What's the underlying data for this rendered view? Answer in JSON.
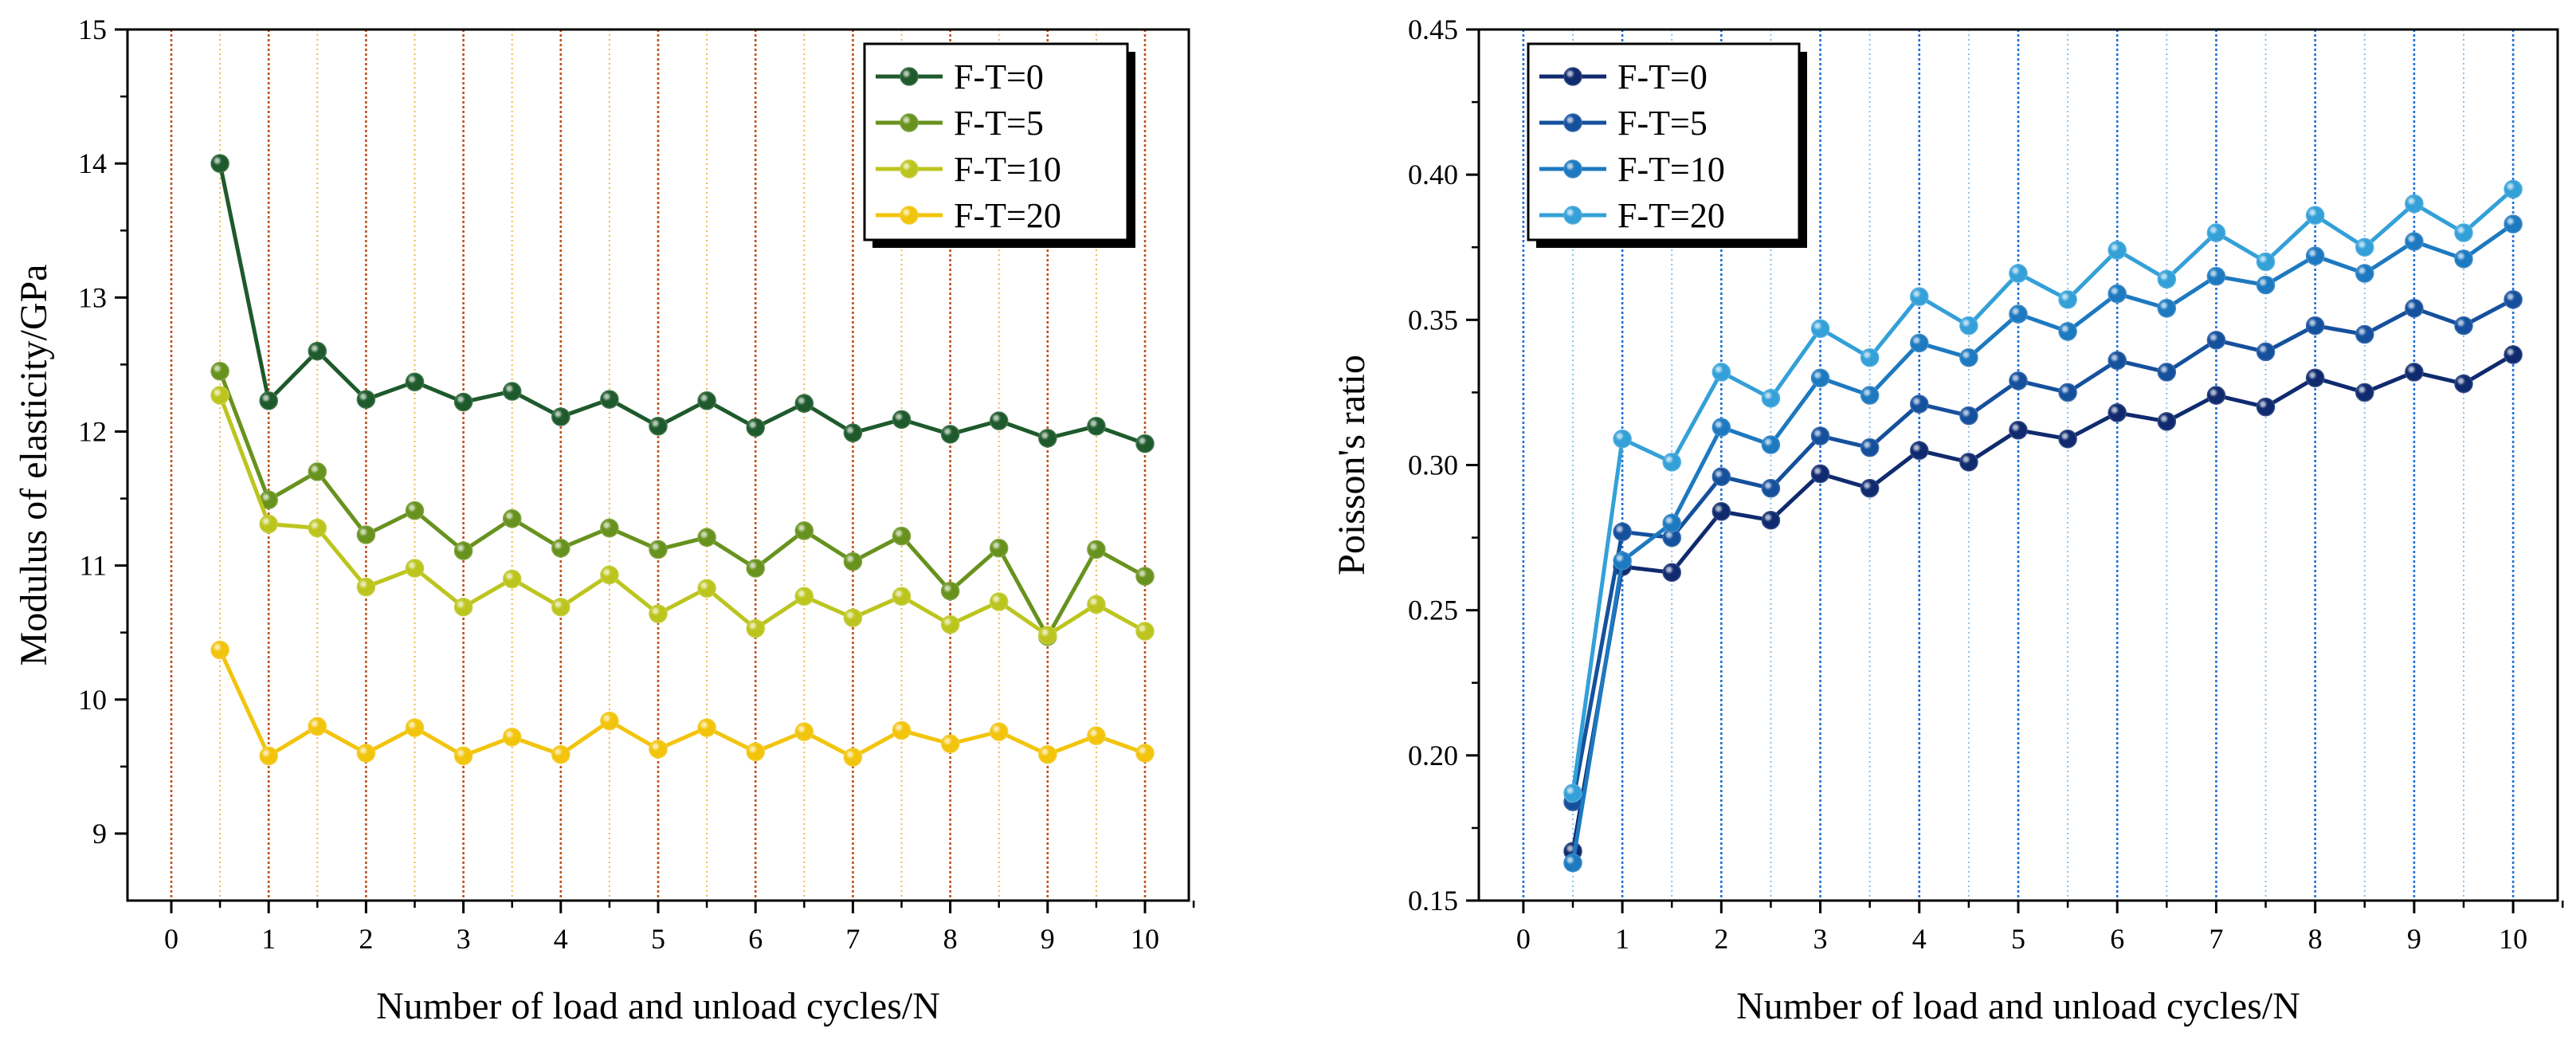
{
  "chart_data": [
    {
      "type": "line",
      "xlabel": "Number of load and unload cycles/N",
      "ylabel": "Modulus of elasticity/GPa",
      "xlim": [
        -0.45,
        10.45
      ],
      "ylim": [
        8.5,
        15
      ],
      "x_ticks": [
        0,
        1,
        2,
        3,
        4,
        5,
        6,
        7,
        8,
        9,
        10
      ],
      "y_ticks": [
        9,
        10,
        11,
        12,
        13,
        14,
        15
      ],
      "major_grid_color": "#c0501c",
      "minor_grid_color": "#f2b84e",
      "legend_position": "top-right",
      "x": [
        0.5,
        1,
        1.5,
        2,
        2.5,
        3,
        3.5,
        4,
        4.5,
        5,
        5.5,
        6,
        6.5,
        7,
        7.5,
        8,
        8.5,
        9,
        9.5,
        10
      ],
      "series": [
        {
          "name": "F-T=0",
          "color": "#1e5a2c",
          "values": [
            14.0,
            12.23,
            12.6,
            12.24,
            12.37,
            12.22,
            12.3,
            12.11,
            12.24,
            12.04,
            12.23,
            12.03,
            12.21,
            11.99,
            12.09,
            11.98,
            12.08,
            11.95,
            12.04,
            11.91
          ]
        },
        {
          "name": "F-T=5",
          "color": "#68921e",
          "values": [
            12.45,
            11.49,
            11.7,
            11.23,
            11.41,
            11.11,
            11.35,
            11.13,
            11.28,
            11.12,
            11.21,
            10.98,
            11.26,
            11.03,
            11.22,
            10.81,
            11.13,
            10.47,
            11.12,
            10.92
          ]
        },
        {
          "name": "F-T=10",
          "color": "#bcc51e",
          "values": [
            12.27,
            11.31,
            11.28,
            10.84,
            10.98,
            10.69,
            10.9,
            10.69,
            10.93,
            10.64,
            10.83,
            10.53,
            10.77,
            10.61,
            10.77,
            10.56,
            10.73,
            10.48,
            10.71,
            10.51
          ]
        },
        {
          "name": "F-T=20",
          "color": "#f2c40c",
          "values": [
            10.37,
            9.58,
            9.8,
            9.6,
            9.79,
            9.58,
            9.72,
            9.59,
            9.84,
            9.63,
            9.79,
            9.61,
            9.76,
            9.57,
            9.77,
            9.67,
            9.76,
            9.59,
            9.73,
            9.6
          ]
        }
      ]
    },
    {
      "type": "line",
      "xlabel": "Number of load and unload cycles/N",
      "ylabel": "Poisson's ratio",
      "xlim": [
        -0.45,
        10.45
      ],
      "ylim": [
        0.15,
        0.45
      ],
      "x_ticks": [
        0,
        1,
        2,
        3,
        4,
        5,
        6,
        7,
        8,
        9,
        10
      ],
      "y_ticks": [
        0.15,
        0.2,
        0.25,
        0.3,
        0.35,
        0.4,
        0.45
      ],
      "y_tick_labels": [
        "0.15",
        "0.20",
        "0.25",
        "0.30",
        "0.35",
        "0.40",
        "0.45"
      ],
      "major_grid_color": "#1f6fd8",
      "minor_grid_color": "#86c1ee",
      "legend_position": "top-left",
      "x": [
        0.5,
        1,
        1.5,
        2,
        2.5,
        3,
        3.5,
        4,
        4.5,
        5,
        5.5,
        6,
        6.5,
        7,
        7.5,
        8,
        8.5,
        9,
        9.5,
        10
      ],
      "series": [
        {
          "name": "F-T=0",
          "color": "#0f2a6e",
          "values": [
            0.167,
            0.265,
            0.263,
            0.284,
            0.281,
            0.297,
            0.292,
            0.305,
            0.301,
            0.312,
            0.309,
            0.318,
            0.315,
            0.324,
            0.32,
            0.33,
            0.325,
            0.332,
            0.328,
            0.338
          ]
        },
        {
          "name": "F-T=5",
          "color": "#15509d",
          "values": [
            0.184,
            0.277,
            0.275,
            0.296,
            0.292,
            0.31,
            0.306,
            0.321,
            0.317,
            0.329,
            0.325,
            0.336,
            0.332,
            0.343,
            0.339,
            0.348,
            0.345,
            0.354,
            0.348,
            0.357
          ]
        },
        {
          "name": "F-T=10",
          "color": "#1d79c0",
          "values": [
            0.163,
            0.267,
            0.28,
            0.313,
            0.307,
            0.33,
            0.324,
            0.342,
            0.337,
            0.352,
            0.346,
            0.359,
            0.354,
            0.365,
            0.362,
            0.372,
            0.366,
            0.377,
            0.371,
            0.383
          ]
        },
        {
          "name": "F-T=20",
          "color": "#33a0d8",
          "values": [
            0.187,
            0.309,
            0.301,
            0.332,
            0.323,
            0.347,
            0.337,
            0.358,
            0.348,
            0.366,
            0.357,
            0.374,
            0.364,
            0.38,
            0.37,
            0.386,
            0.375,
            0.39,
            0.38,
            0.395
          ]
        }
      ]
    }
  ]
}
